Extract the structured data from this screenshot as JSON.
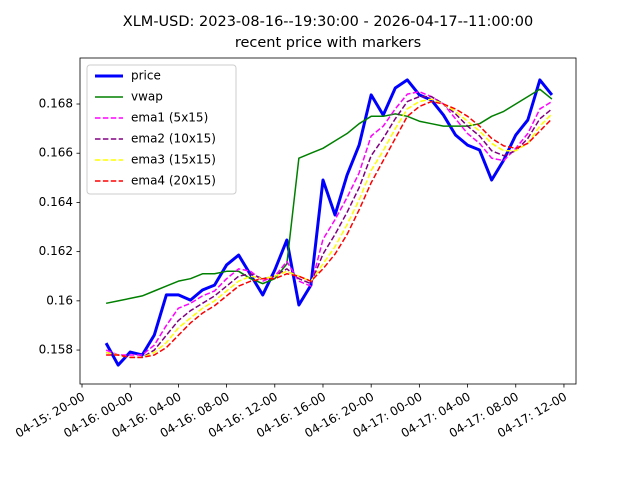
{
  "chart_data": {
    "type": "line",
    "title": "XLM-USD: 2023-08-16--19:30:00 - 2026-04-17--11:00:00",
    "subtitle": "recent price with markers",
    "x": [
      "04-15 22:00",
      "04-15 23:00",
      "04-16 00:00",
      "04-16 01:00",
      "04-16 02:00",
      "04-16 03:00",
      "04-16 04:00",
      "04-16 05:00",
      "04-16 06:00",
      "04-16 07:00",
      "04-16 08:00",
      "04-16 09:00",
      "04-16 10:00",
      "04-16 11:00",
      "04-16 12:00",
      "04-16 13:00",
      "04-16 14:00",
      "04-16 15:00",
      "04-16 16:00",
      "04-16 17:00",
      "04-16 18:00",
      "04-16 19:00",
      "04-16 20:00",
      "04-16 21:00",
      "04-16 22:00",
      "04-16 23:00",
      "04-17 00:00",
      "04-17 01:00",
      "04-17 02:00",
      "04-17 03:00",
      "04-17 04:00",
      "04-17 05:00",
      "04-17 06:00",
      "04-17 07:00",
      "04-17 08:00",
      "04-17 09:00",
      "04-17 10:00",
      "04-17 11:00"
    ],
    "series": [
      {
        "name": "price",
        "color": "#0000ff",
        "linestyle": "solid",
        "linewidth": 3,
        "values": [
          0.15828,
          0.15739,
          0.15792,
          0.1578,
          0.15861,
          0.16024,
          0.16024,
          0.16003,
          0.16044,
          0.16064,
          0.16146,
          0.16186,
          0.16105,
          0.16024,
          0.16125,
          0.16247,
          0.15983,
          0.16064,
          0.16491,
          0.16349,
          0.16511,
          0.16633,
          0.16837,
          0.16755,
          0.16865,
          0.16898,
          0.16837,
          0.16816,
          0.16755,
          0.16674,
          0.16633,
          0.16613,
          0.16491,
          0.16572,
          0.16674,
          0.16735,
          0.16898,
          0.16837
        ]
      },
      {
        "name": "vwap",
        "color": "#008000",
        "linestyle": "solid",
        "linewidth": 1.5,
        "values": [
          0.1599,
          0.16,
          0.1601,
          0.1602,
          0.1604,
          0.1606,
          0.1608,
          0.1609,
          0.1611,
          0.1611,
          0.1612,
          0.1612,
          0.1609,
          0.1607,
          0.1609,
          0.1615,
          0.1658,
          0.166,
          0.1662,
          0.1665,
          0.1668,
          0.1672,
          0.1675,
          0.1675,
          0.1676,
          0.1675,
          0.1673,
          0.1672,
          0.1671,
          0.1671,
          0.1671,
          0.1672,
          0.1675,
          0.1677,
          0.168,
          0.1683,
          0.1686,
          0.1682
        ]
      },
      {
        "name": "ema1 (5x15)",
        "color": "#ff00ff",
        "linestyle": "dashed",
        "linewidth": 1.5,
        "values": [
          0.158,
          0.1578,
          0.1578,
          0.1578,
          0.1582,
          0.159,
          0.1597,
          0.1599,
          0.1602,
          0.1604,
          0.1609,
          0.1613,
          0.1612,
          0.1608,
          0.161,
          0.1616,
          0.1608,
          0.1606,
          0.1625,
          0.1633,
          0.1642,
          0.1652,
          0.1667,
          0.1671,
          0.1678,
          0.1684,
          0.1685,
          0.1683,
          0.168,
          0.1674,
          0.1668,
          0.1664,
          0.1658,
          0.1657,
          0.1662,
          0.1668,
          0.1678,
          0.1681
        ]
      },
      {
        "name": "ema2 (10x15)",
        "color": "#800080",
        "linestyle": "dashed",
        "linewidth": 1.5,
        "values": [
          0.1579,
          0.1578,
          0.1577,
          0.1577,
          0.158,
          0.1586,
          0.1592,
          0.1596,
          0.1599,
          0.1602,
          0.1606,
          0.161,
          0.1611,
          0.1609,
          0.161,
          0.1613,
          0.1609,
          0.1607,
          0.1619,
          0.1627,
          0.1636,
          0.1646,
          0.1659,
          0.1666,
          0.1674,
          0.1681,
          0.1683,
          0.1683,
          0.168,
          0.1676,
          0.1671,
          0.1667,
          0.1661,
          0.1659,
          0.1661,
          0.1666,
          0.1674,
          0.1678
        ]
      },
      {
        "name": "ema3 (15x15)",
        "color": "#ffff00",
        "linestyle": "dashed",
        "linewidth": 1.5,
        "values": [
          0.1579,
          0.1578,
          0.1577,
          0.1577,
          0.1579,
          0.1583,
          0.1589,
          0.1593,
          0.1597,
          0.16,
          0.1604,
          0.1608,
          0.161,
          0.1609,
          0.161,
          0.1612,
          0.161,
          0.1608,
          0.1615,
          0.1622,
          0.1631,
          0.1641,
          0.1653,
          0.1661,
          0.167,
          0.1678,
          0.1681,
          0.1682,
          0.168,
          0.1677,
          0.1673,
          0.1669,
          0.1664,
          0.1661,
          0.1661,
          0.1664,
          0.1671,
          0.1676
        ]
      },
      {
        "name": "ema4 (20x15)",
        "color": "#ff0000",
        "linestyle": "dashed",
        "linewidth": 1.5,
        "values": [
          0.1578,
          0.1578,
          0.1577,
          0.1577,
          0.1578,
          0.1581,
          0.1586,
          0.1591,
          0.1595,
          0.1598,
          0.1602,
          0.1606,
          0.1608,
          0.1609,
          0.1609,
          0.1611,
          0.161,
          0.1608,
          0.1613,
          0.1619,
          0.1627,
          0.1637,
          0.1648,
          0.1657,
          0.1666,
          0.1675,
          0.1679,
          0.1681,
          0.168,
          0.1678,
          0.1675,
          0.1671,
          0.1666,
          0.1663,
          0.1662,
          0.1664,
          0.1669,
          0.1674
        ]
      }
    ],
    "xlim": [
      "04-15 19:50",
      "04-17 13:00"
    ],
    "xticks": [
      {
        "value": "04-15 20:00",
        "label": "04-15: 20-00"
      },
      {
        "value": "04-16 00:00",
        "label": "04-16: 00-00"
      },
      {
        "value": "04-16 04:00",
        "label": "04-16: 04-00"
      },
      {
        "value": "04-16 08:00",
        "label": "04-16: 08-00"
      },
      {
        "value": "04-16 12:00",
        "label": "04-16: 12-00"
      },
      {
        "value": "04-16 16:00",
        "label": "04-16: 16-00"
      },
      {
        "value": "04-16 20:00",
        "label": "04-16: 20-00"
      },
      {
        "value": "04-17 00:00",
        "label": "04-17: 00-00"
      },
      {
        "value": "04-17 04:00",
        "label": "04-17: 04-00"
      },
      {
        "value": "04-17 08:00",
        "label": "04-17: 08-00"
      },
      {
        "value": "04-17 12:00",
        "label": "04-17: 12-00"
      }
    ],
    "ylim": [
      0.15662,
      0.16987
    ],
    "yticks": [
      0.158,
      0.16,
      0.162,
      0.164,
      0.166,
      0.168
    ],
    "grid": false,
    "legend": "upper left"
  }
}
